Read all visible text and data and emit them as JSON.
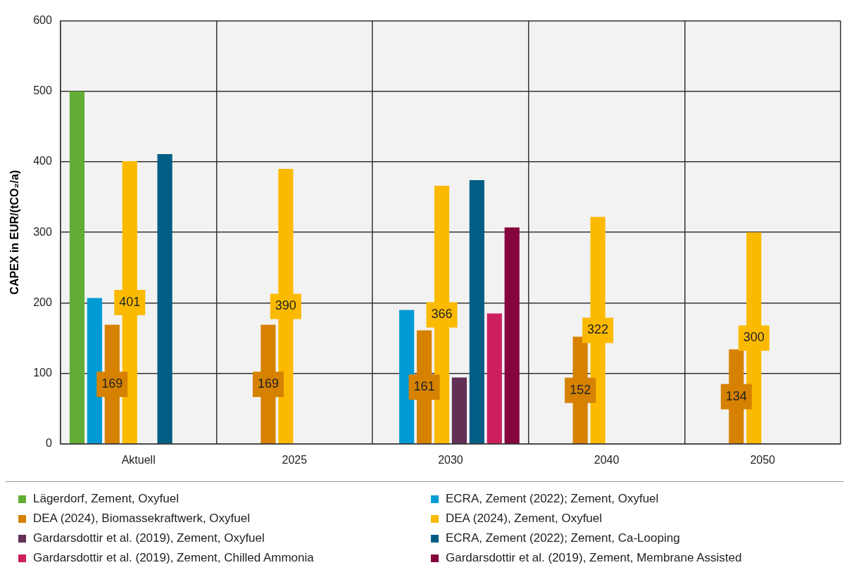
{
  "chart_data": {
    "type": "bar",
    "ylabel": "CAPEX in EUR/(tCO₂/a)",
    "categories": [
      "Aktuell",
      "2025",
      "2030",
      "2040",
      "2050"
    ],
    "ylim": [
      0,
      600
    ],
    "yticks": [
      0,
      100,
      200,
      300,
      400,
      500,
      600
    ],
    "grid": true,
    "legend": "bottom",
    "series": [
      {
        "name": "Lägerdorf, Zement, Oxyfuel",
        "color": "#62ad35",
        "values": [
          500,
          null,
          null,
          null,
          null
        ]
      },
      {
        "name": "ECRA, Zement (2022); Zement, Oxyfuel",
        "color": "#009ad4",
        "values": [
          207,
          null,
          190,
          null,
          null
        ]
      },
      {
        "name": "DEA (2024), Biomassekraftwerk, Oxyfuel",
        "color": "#d68200",
        "values": [
          169,
          169,
          161,
          152,
          134
        ],
        "value_labels": [
          "169",
          "169",
          "161",
          "152",
          "134"
        ]
      },
      {
        "name": "DEA (2024), Zement, Oxyfuel",
        "color": "#fbba00",
        "values": [
          401,
          390,
          366,
          322,
          300
        ],
        "value_labels": [
          "401",
          "390",
          "366",
          "322",
          "300"
        ]
      },
      {
        "name": "Gardarsdottir et al. (2019), Zement, Oxyfuel",
        "color": "#622f55",
        "values": [
          null,
          null,
          94,
          null,
          null
        ]
      },
      {
        "name": "ECRA, Zement (2022); Zement, Ca-Looping",
        "color": "#005e84",
        "values": [
          411,
          null,
          374,
          null,
          null
        ]
      },
      {
        "name": "Gardarsdottir et al. (2019), Zement, Chilled Ammonia",
        "color": "#cd1f5e",
        "values": [
          null,
          null,
          185,
          null,
          null
        ]
      },
      {
        "name": "Gardarsdottir et al. (2019), Zement, Membrane Assisted",
        "color": "#85053d",
        "values": [
          null,
          null,
          307,
          null,
          null
        ]
      }
    ]
  }
}
